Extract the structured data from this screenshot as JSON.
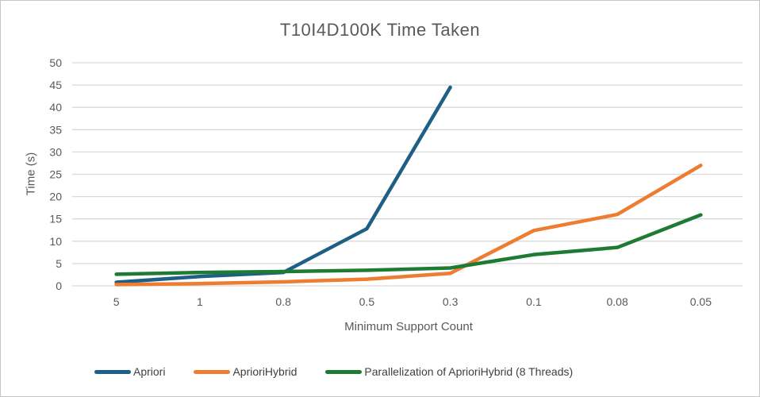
{
  "window": {
    "background": "#ffffff",
    "border_color": "#c6c6c6"
  },
  "chart_data": {
    "type": "line",
    "title": "T10I4D100K Time Taken",
    "xlabel": "Minimum Support Count",
    "ylabel": "Time (s)",
    "categories": [
      "5",
      "1",
      "0.8",
      "0.5",
      "0.3",
      "0.1",
      "0.08",
      "0.05"
    ],
    "ylim": [
      0,
      50
    ],
    "yticks": [
      0,
      5,
      10,
      15,
      20,
      25,
      30,
      35,
      40,
      45,
      50
    ],
    "grid": true,
    "gridline_color": "#d9d9d9",
    "tick_color": "#595959",
    "title_color": "#595959",
    "legend_position": "bottom",
    "line_width": 4.5,
    "series": [
      {
        "name": "Apriori",
        "color": "#1e5f85",
        "values": [
          0.8,
          2.1,
          3.0,
          12.8,
          44.5,
          null,
          null,
          null
        ]
      },
      {
        "name": "AprioriHybrid",
        "color": "#ed7d31",
        "values": [
          0.3,
          0.5,
          0.9,
          1.5,
          2.8,
          12.4,
          16.0,
          27.0
        ]
      },
      {
        "name": "Parallelization of AprioriHybrid (8 Threads)",
        "color": "#1e7b34",
        "values": [
          2.6,
          3.0,
          3.2,
          3.5,
          4.0,
          7.0,
          8.6,
          15.9
        ]
      }
    ]
  }
}
